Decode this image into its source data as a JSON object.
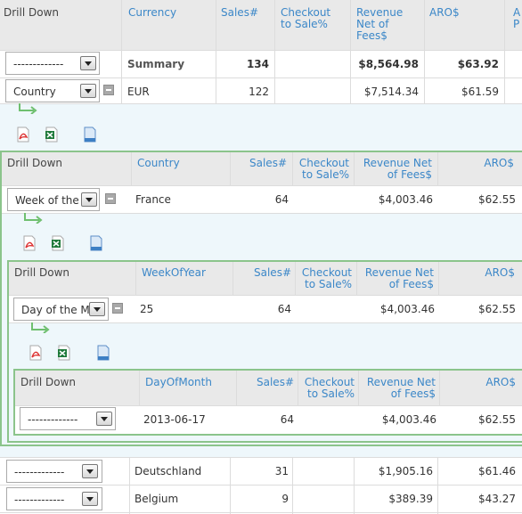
{
  "headers": {
    "drill_down": "Drill Down",
    "currency": "Currency",
    "sales": "Sales#",
    "checkout": "Checkout to Sale%",
    "revenue": "Revenue Net of Fees$",
    "aro": "ARO$",
    "extra": "A P",
    "country": "Country",
    "week_of_year": "WeekOfYear",
    "day_of_month": "DayOfMonth"
  },
  "summary_row": {
    "select": "-------------",
    "label": "Summary",
    "sales": "134",
    "revenue": "$8,564.98",
    "aro": "$63.92"
  },
  "eur_row": {
    "select": "Country",
    "currency": "EUR",
    "sales": "122",
    "revenue": "$7,514.34",
    "aro": "$61.59"
  },
  "france_row": {
    "select": "Week of the Y",
    "country": "France",
    "sales": "64",
    "revenue": "$4,003.46",
    "aro": "$62.55"
  },
  "week_row": {
    "select": "Day of the Mo",
    "week": "25",
    "sales": "64",
    "revenue": "$4,003.46",
    "aro": "$62.55"
  },
  "day_row": {
    "select": "-------------",
    "date": "2013-06-17",
    "sales": "64",
    "revenue": "$4,003.46",
    "aro": "$62.55"
  },
  "deutschland_row": {
    "select": "-------------",
    "country": "Deutschland",
    "sales": "31",
    "revenue": "$1,905.16",
    "aro": "$61.46"
  },
  "belgium_row": {
    "select": "-------------",
    "country": "Belgium",
    "sales": "9",
    "revenue": "$389.39",
    "aro": "$43.27"
  },
  "icons": [
    "pdf-icon",
    "excel-icon",
    "document-icon"
  ],
  "colors": {
    "header_bg": "#e9e9e9",
    "header_text": "#3b87c8",
    "panel_bg": "#eef7fb",
    "border_green": "#8bc48b"
  }
}
